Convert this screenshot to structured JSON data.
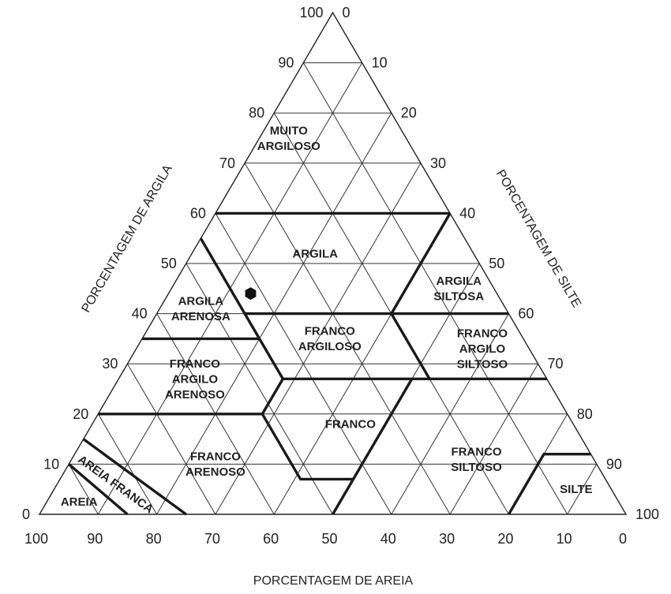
{
  "diagram": {
    "type": "ternary-soil-texture",
    "grid_step": 10,
    "axes": {
      "clay": {
        "label": "PORCENTAGEM DE ARGILA",
        "ticks": [
          0,
          10,
          20,
          30,
          40,
          50,
          60,
          70,
          80,
          90,
          100
        ]
      },
      "silt": {
        "label": "PORCENTAGEM DE SILTE",
        "ticks": [
          0,
          10,
          20,
          30,
          40,
          50,
          60,
          70,
          80,
          90,
          100
        ]
      },
      "sand": {
        "label": "PORCENTAGEM DE AREIA",
        "ticks": [
          100,
          90,
          80,
          70,
          60,
          50,
          40,
          30,
          20,
          10,
          0
        ]
      }
    },
    "boundaries_sand_clay": [
      [
        [
          40,
          60
        ],
        [
          0,
          60
        ]
      ],
      [
        [
          45,
          55
        ],
        [
          45,
          27
        ]
      ],
      [
        [
          45,
          40
        ],
        [
          0,
          40
        ]
      ],
      [
        [
          0,
          60
        ],
        [
          20,
          40
        ]
      ],
      [
        [
          20,
          40
        ],
        [
          20,
          27
        ]
      ],
      [
        [
          65,
          35
        ],
        [
          45,
          35
        ]
      ],
      [
        [
          45,
          27
        ],
        [
          0,
          27
        ]
      ],
      [
        [
          45,
          27
        ],
        [
          52,
          20
        ],
        [
          52,
          7
        ],
        [
          43,
          7
        ]
      ],
      [
        [
          23,
          27
        ],
        [
          50,
          0
        ]
      ],
      [
        [
          80,
          20
        ],
        [
          52,
          20
        ]
      ],
      [
        [
          20,
          0
        ],
        [
          8,
          12
        ],
        [
          0,
          12
        ]
      ],
      [
        [
          85,
          15
        ],
        [
          75,
          0
        ]
      ],
      [
        [
          90,
          10
        ],
        [
          85,
          0
        ]
      ]
    ],
    "regions": [
      {
        "lines": [
          "MUITO",
          "ARGILOSO"
        ],
        "sand": 20,
        "clay": 75
      },
      {
        "lines": [
          "ARGILA"
        ],
        "sand": 27,
        "clay": 52
      },
      {
        "lines": [
          "ARGILA",
          "SILTOSA"
        ],
        "sand": 6,
        "clay": 45
      },
      {
        "lines": [
          "ARGILA",
          "ARENOSA"
        ],
        "sand": 52,
        "clay": 41
      },
      {
        "lines": [
          "FRANCO",
          "ARGILOSO"
        ],
        "sand": 33,
        "clay": 35
      },
      {
        "lines": [
          "FRANCO",
          "ARGILO",
          "SILTOSO"
        ],
        "sand": 8,
        "clay": 33
      },
      {
        "lines": [
          "FRANCO",
          "ARGILO",
          "ARENOSO"
        ],
        "sand": 60,
        "clay": 27
      },
      {
        "lines": [
          "FRANCO"
        ],
        "sand": 38,
        "clay": 18
      },
      {
        "lines": [
          "FRANCO",
          "SILTOSO"
        ],
        "sand": 20,
        "clay": 11
      },
      {
        "lines": [
          "FRANCO",
          "ARENOSO"
        ],
        "sand": 65,
        "clay": 10
      },
      {
        "lines": [
          "AREIA FRANCA"
        ],
        "sand": 84,
        "clay": 6,
        "rotate": 36
      },
      {
        "lines": [
          "AREIA"
        ],
        "sand": 92,
        "clay": 2.5
      },
      {
        "lines": [
          "SILTE"
        ],
        "sand": 6,
        "clay": 5
      }
    ],
    "sample_point": {
      "sand": 42,
      "clay": 44,
      "silt": 14,
      "marker": "hexagon",
      "color": "#111111"
    }
  }
}
